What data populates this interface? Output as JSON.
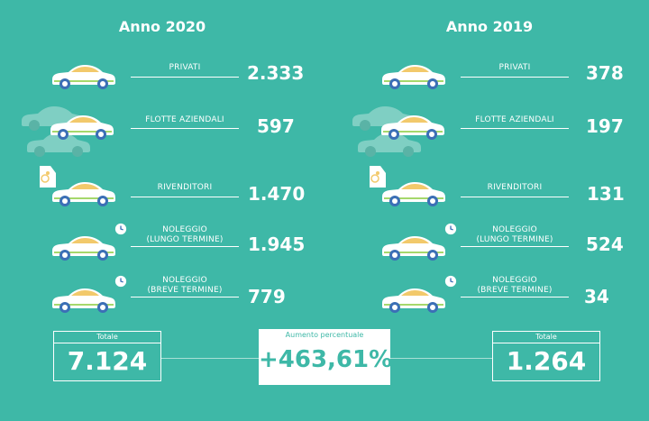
{
  "left": {
    "title": "Anno 2020",
    "rows": [
      {
        "label": "PRIVATI",
        "value": "2.333"
      },
      {
        "label": "FLOTTE AZIENDALI",
        "value": "597"
      },
      {
        "label": "RIVENDITORI",
        "value": "1.470"
      },
      {
        "label_line1": "NOLEGGIO",
        "label_line2": "(LUNGO TERMINE)",
        "value": "1.945"
      },
      {
        "label_line1": "NOLEGGIO",
        "label_line2": "(BREVE TERMINE)",
        "value": "779"
      }
    ],
    "total_label": "Totale",
    "total_value": "7.124"
  },
  "right": {
    "title": "Anno 2019",
    "rows": [
      {
        "label": "PRIVATI",
        "value": "378"
      },
      {
        "label": "FLOTTE AZIENDALI",
        "value": "197"
      },
      {
        "label": "RIVENDITORI",
        "value": "131"
      },
      {
        "label_line1": "NOLEGGIO",
        "label_line2": "(LUNGO TERMINE)",
        "value": "524"
      },
      {
        "label_line1": "NOLEGGIO",
        "label_line2": "(BREVE TERMINE)",
        "value": "34"
      }
    ],
    "total_label": "Totale",
    "total_value": "1.264"
  },
  "center": {
    "label": "Aumento percentuale",
    "value": "+463,61%"
  },
  "colors": {
    "background": "#3eb8a7",
    "car_body": "#ffffff",
    "car_window": "#f2c96b",
    "wheel": "#3b6fb6",
    "accent_stripe": "#a6d86c",
    "ghost_car": "#7fcfc3"
  },
  "icons": [
    "car-icon",
    "ghost-car-icon",
    "price-tag-icon",
    "clock-icon"
  ]
}
